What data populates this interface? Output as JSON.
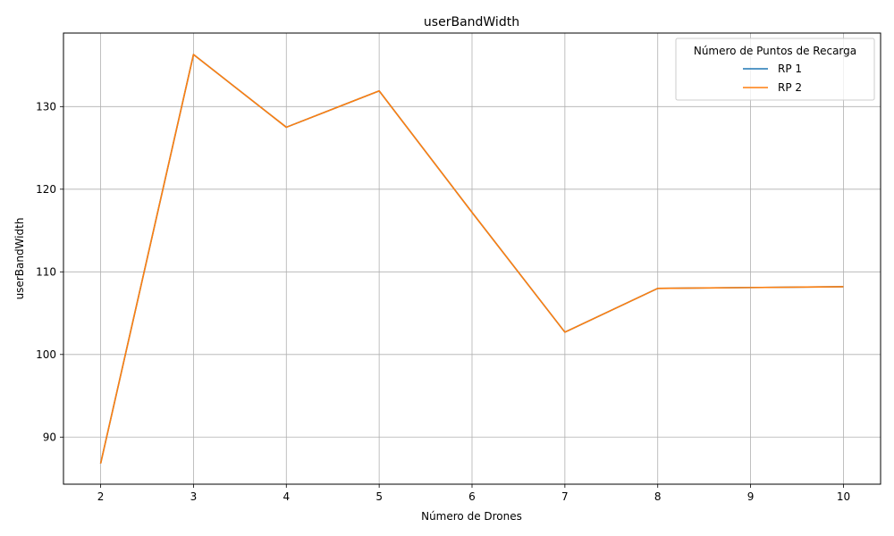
{
  "chart_data": {
    "type": "line",
    "title": "userBandWidth",
    "xlabel": "Número de Drones",
    "ylabel": "userBandWidth",
    "x": [
      2,
      3,
      4,
      5,
      6,
      7,
      8,
      9,
      10
    ],
    "xticks": [
      "2",
      "3",
      "4",
      "5",
      "6",
      "7",
      "8",
      "9",
      "10"
    ],
    "yticks": [
      "90",
      "100",
      "110",
      "120",
      "130"
    ],
    "xlim": [
      1.6,
      10.4
    ],
    "ylim": [
      84.3,
      138.9
    ],
    "grid": true,
    "legend": {
      "title": "Número de Puntos de Recarga",
      "placement": "top-right"
    },
    "series": [
      {
        "name": "RP 1",
        "color": "#1f77b4",
        "values": [
          86.8,
          136.3,
          127.5,
          131.9,
          117.2,
          102.7,
          108.0,
          108.1,
          108.2
        ]
      },
      {
        "name": "RP 2",
        "color": "#ff7f0e",
        "values": [
          86.8,
          136.3,
          127.5,
          131.9,
          117.2,
          102.7,
          108.0,
          108.1,
          108.2
        ]
      }
    ]
  }
}
